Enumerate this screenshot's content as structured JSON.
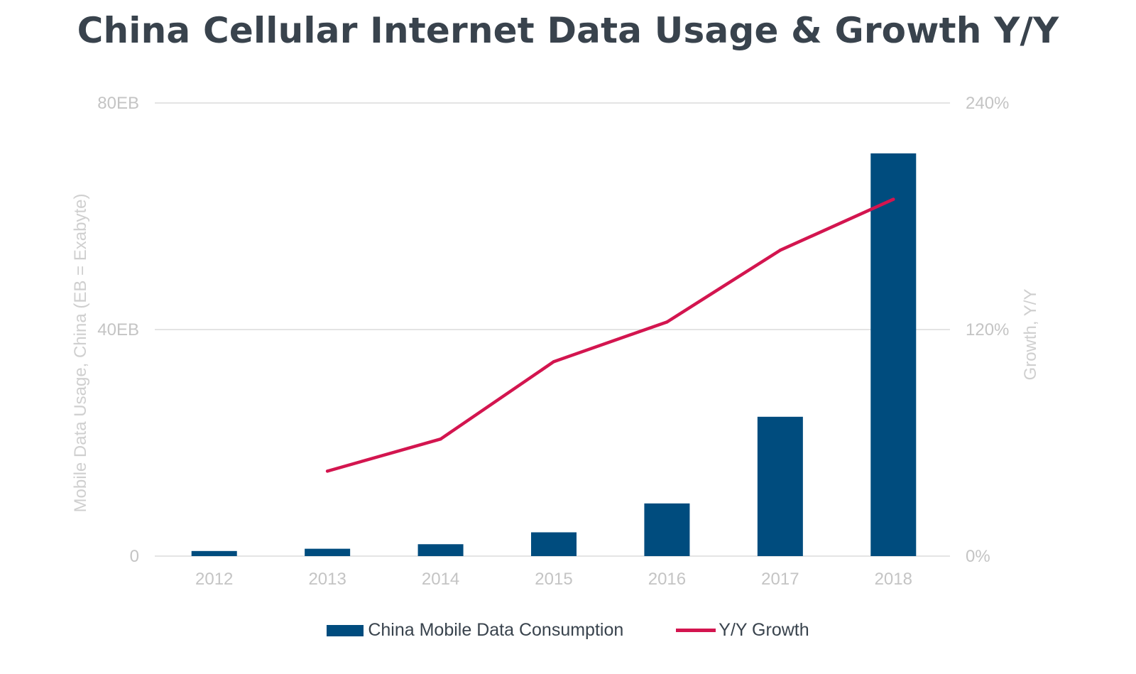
{
  "chart_data": {
    "type": "bar",
    "title": "China Cellular Internet Data Usage & Growth Y/Y",
    "categories": [
      "2012",
      "2013",
      "2014",
      "2015",
      "2016",
      "2017",
      "2018"
    ],
    "series": [
      {
        "name": "China Mobile Data Consumption",
        "type": "bar",
        "axis": "left",
        "values": [
          0.9,
          1.3,
          2.1,
          4.2,
          9.3,
          24.6,
          71.1
        ],
        "color": "#004c7e"
      },
      {
        "name": "Y/Y Growth",
        "type": "line",
        "axis": "right",
        "values": [
          null,
          45,
          62,
          103,
          124,
          162,
          189
        ],
        "color": "#d3154f"
      }
    ],
    "y_left": {
      "label": "Mobile Data Usage, China (EB = Exabyte)",
      "range": [
        0,
        80
      ],
      "ticks": [
        0,
        40,
        80
      ],
      "tick_labels": [
        "0",
        "40EB",
        "80EB"
      ]
    },
    "y_right": {
      "label": "Growth, Y/Y",
      "range": [
        0,
        240
      ],
      "ticks": [
        0,
        120,
        240
      ],
      "tick_labels": [
        "0%",
        "120%",
        "240%"
      ]
    },
    "grid": true,
    "legend": "bottom-center"
  }
}
